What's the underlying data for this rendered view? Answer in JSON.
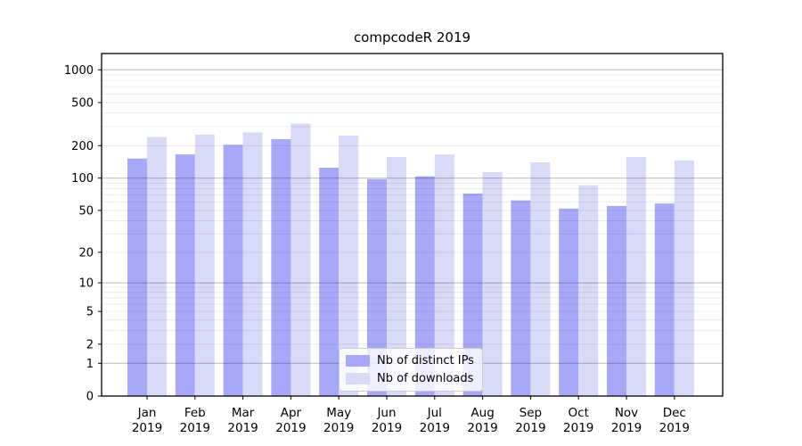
{
  "figure": {
    "title": "compcodeR 2019",
    "background": "#ffffff",
    "axis_color": "#000000"
  },
  "legend": {
    "position": "lower center",
    "items": [
      {
        "label": "Nb of distinct IPs",
        "color": "#a8a8f8"
      },
      {
        "label": "Nb of downloads",
        "color": "#d9d9f8"
      }
    ]
  },
  "chart_data": {
    "type": "bar",
    "title": "compcodeR 2019",
    "categories": [
      "Jan",
      "Feb",
      "Mar",
      "Apr",
      "May",
      "Jun",
      "Jul",
      "Aug",
      "Sep",
      "Oct",
      "Nov",
      "Dec"
    ],
    "category_year": "2019",
    "series": [
      {
        "name": "Nb of distinct IPs",
        "color": "#a8a8f8",
        "values": [
          152,
          166,
          204,
          230,
          125,
          98,
          104,
          72,
          62,
          52,
          55,
          58
        ]
      },
      {
        "name": "Nb of downloads",
        "color": "#d9d9f8",
        "values": [
          240,
          253,
          265,
          320,
          248,
          157,
          166,
          114,
          140,
          86,
          157,
          146
        ]
      }
    ],
    "yscale": "log1p",
    "y_ticks": [
      0,
      1,
      2,
      5,
      10,
      20,
      50,
      100,
      200,
      500,
      1000
    ],
    "y_major_gridlines": [
      1,
      10,
      100,
      1000
    ],
    "ylim": [
      0,
      1320
    ],
    "grid": true,
    "legend_position": "lower center"
  }
}
